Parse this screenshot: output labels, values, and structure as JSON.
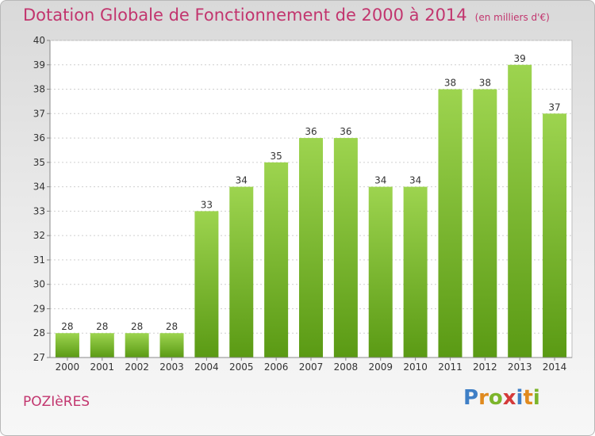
{
  "header": {
    "title": "Dotation Globale de Fonctionnement de 2000 à 2014",
    "subtitle": "(en milliers d'€)"
  },
  "footer": {
    "commune": "POZIèRES",
    "logo": "Proxiti"
  },
  "colors": {
    "title": "#c2356e",
    "bar_top": "#9dd44f",
    "bar_bottom": "#5a9a14"
  },
  "chart_data": {
    "type": "bar",
    "title": "Dotation Globale de Fonctionnement de 2000 à 2014",
    "subtitle": "(en milliers d'€)",
    "categories": [
      "2000",
      "2001",
      "2002",
      "2003",
      "2004",
      "2005",
      "2006",
      "2007",
      "2008",
      "2009",
      "2010",
      "2011",
      "2012",
      "2013",
      "2014"
    ],
    "values": [
      28,
      28,
      28,
      28,
      33,
      34,
      35,
      36,
      36,
      34,
      34,
      38,
      38,
      39,
      37
    ],
    "ylim": [
      27,
      40
    ],
    "yticks": [
      27,
      28,
      29,
      30,
      31,
      32,
      33,
      34,
      35,
      36,
      37,
      38,
      39,
      40
    ],
    "grid": true,
    "xlabel": "",
    "ylabel": ""
  }
}
